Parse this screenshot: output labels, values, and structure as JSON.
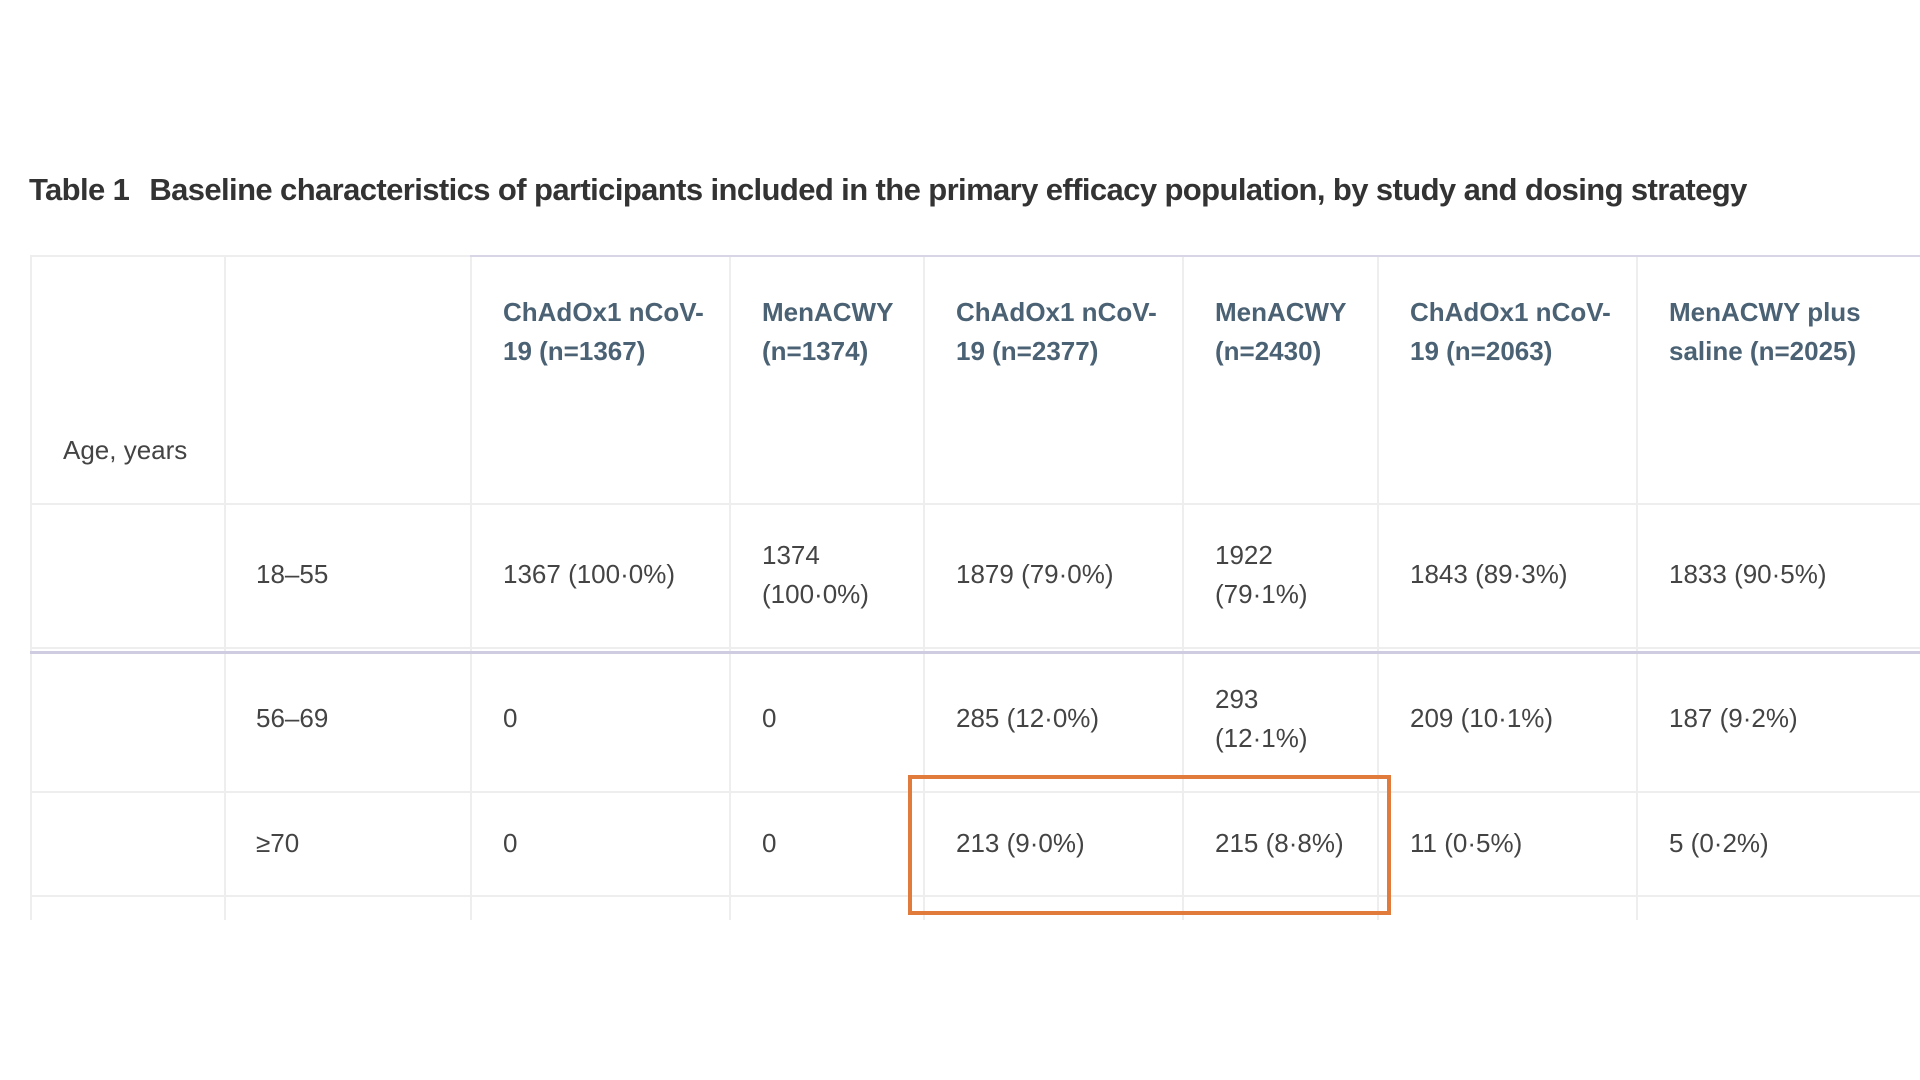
{
  "table": {
    "number": "Table 1",
    "caption": "Baseline characteristics of participants included in the primary efficacy population, by study and dosing strategy",
    "headers": [
      "ChAdOx1 nCoV-19 (n=1367)",
      "MenACWY (n=1374)",
      "ChAdOx1 nCoV-19 (n=2377)",
      "MenACWY (n=2430)",
      "ChAdOx1 nCoV-19 (n=2063)",
      "MenACWY plus saline (n=2025)"
    ],
    "header_lines": [
      [
        "ChAdOx1 nCoV-",
        "19 (n=1367)"
      ],
      [
        "MenACWY",
        "(n=1374)"
      ],
      [
        "ChAdOx1 nCoV-",
        "19 (n=2377)"
      ],
      [
        "MenACWY",
        "(n=2430)"
      ],
      [
        "ChAdOx1 nCoV-",
        "19 (n=2063)"
      ],
      [
        "MenACWY plus",
        "saline (n=2025)"
      ]
    ],
    "section_label": "Age, years",
    "rows": [
      {
        "label": "18–55",
        "values": [
          "1367 (100·0%)",
          "1374 (100·0%)",
          "1879 (79·0%)",
          "1922 (79·1%)",
          "1843 (89·3%)",
          "1833 (90·5%)"
        ]
      },
      {
        "label": "56–69",
        "values": [
          "0",
          "0",
          "285 (12·0%)",
          "293 (12·1%)",
          "209 (10·1%)",
          "187 (9·2%)"
        ]
      },
      {
        "label": "≥70",
        "values": [
          "0",
          "0",
          "213 (9·0%)",
          "215 (8·8%)",
          "11 (0·5%)",
          "5 (0·2%)"
        ]
      }
    ],
    "wrapped_cells": {
      "r0c1": [
        "1374",
        "(100·0%)"
      ],
      "r0c3": [
        "1922",
        "(79·1%)"
      ],
      "r1c3": [
        "293",
        "(12·1%)"
      ]
    }
  },
  "highlight": {
    "color": "#e07b3c"
  },
  "colors": {
    "header_text": "#4a6274",
    "body_text": "#444444",
    "rule": "#cfcce2"
  }
}
